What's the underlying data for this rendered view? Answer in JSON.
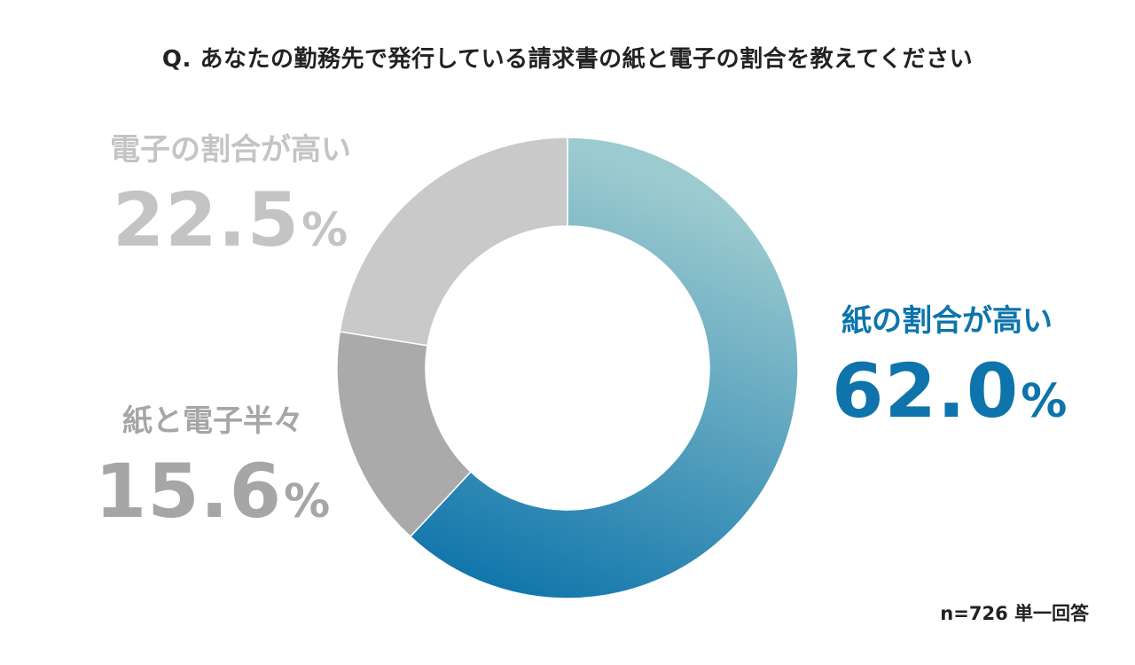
{
  "chart_data": {
    "type": "pie",
    "title": "Q. あなたの勤務先で発行している請求書の紙と電子の割合を教えてください",
    "slices": [
      {
        "key": "paper",
        "label": "紙の割合が高い",
        "value": 62.0,
        "display": "62.0",
        "color": "#0e74ab",
        "color_light": "#9ccbcf"
      },
      {
        "key": "half",
        "label": "紙と電子半々",
        "value": 15.6,
        "display": "15.6",
        "color": "#aaaaaa"
      },
      {
        "key": "electronic",
        "label": "電子の割合が高い",
        "value": 22.5,
        "display": "22.5",
        "color": "#c9c9c9"
      }
    ],
    "unit": "%",
    "start": "12 o'clock, clockwise",
    "note": "n=726 単一回答"
  }
}
